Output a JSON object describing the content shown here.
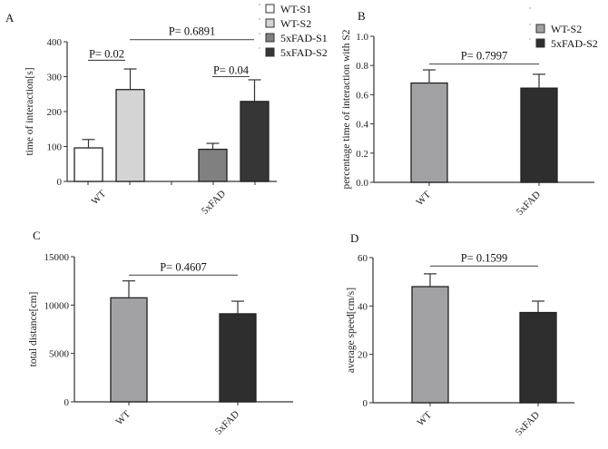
{
  "chart_data": [
    {
      "panel": "A",
      "type": "bar",
      "title": "",
      "xlabel": "",
      "ylabel": "time of interaction[s]",
      "ylim": [
        0,
        400
      ],
      "yticks": [
        0,
        100,
        200,
        300,
        400
      ],
      "categories": [
        "WT",
        "5xFAD"
      ],
      "grid": false,
      "legend_position": "top-right",
      "series": [
        {
          "name": "WT-S1",
          "color": "#ffffff",
          "group": "WT",
          "value": 96,
          "error": 24
        },
        {
          "name": "WT-S2",
          "color": "#d4d4d4",
          "group": "WT",
          "value": 263,
          "error": 59
        },
        {
          "name": "5xFAD-S1",
          "color": "#808080",
          "group": "5xFAD",
          "value": 92,
          "error": 17
        },
        {
          "name": "5xFAD-S2",
          "color": "#363636",
          "group": "5xFAD",
          "value": 229,
          "error": 62
        }
      ],
      "annotations": [
        {
          "text": "P= 0.02",
          "from": "WT-S1",
          "to": "WT-S2",
          "y": 347,
          "underlined": true
        },
        {
          "text": "P= 0.04",
          "from": "5xFAD-S1",
          "to": "5xFAD-S2",
          "y": 300,
          "underlined": true
        },
        {
          "text": "P= 0.6891",
          "from": "WT-S2",
          "to": "5xFAD-S2",
          "y": 406
        }
      ]
    },
    {
      "panel": "B",
      "type": "bar",
      "title": "",
      "xlabel": "",
      "ylabel": "percentage time of interaction with S2",
      "ylim": [
        0,
        1.0
      ],
      "yticks": [
        "0.0",
        "0.2",
        "0.4",
        "0.6",
        "0.8",
        "1.0"
      ],
      "categories": [
        "WT",
        "5xFAD"
      ],
      "grid": false,
      "legend_position": "top-right",
      "series": [
        {
          "name": "WT-S2",
          "color": "#a2a2a4",
          "value": 0.68,
          "error": 0.09
        },
        {
          "name": "5xFAD-S2",
          "color": "#2e2e2e",
          "value": 0.645,
          "error": 0.095
        }
      ],
      "annotations": [
        {
          "text": "P= 0.7997",
          "from": "WT",
          "to": "5xFAD",
          "y": 0.81
        }
      ]
    },
    {
      "panel": "C",
      "type": "bar",
      "title": "",
      "xlabel": "",
      "ylabel": "total distance[cm]",
      "ylim": [
        0,
        15000
      ],
      "yticks": [
        0,
        5000,
        10000,
        15000
      ],
      "categories": [
        "WT",
        "5xFAD"
      ],
      "grid": false,
      "series": [
        {
          "name": "WT",
          "color": "#a2a2a4",
          "value": 10750,
          "error": 1750
        },
        {
          "name": "5xFAD",
          "color": "#2e2e2e",
          "value": 9100,
          "error": 1300
        }
      ],
      "annotations": [
        {
          "text": "P= 0.4607",
          "from": "WT",
          "to": "5xFAD",
          "y": 13100
        }
      ]
    },
    {
      "panel": "D",
      "type": "bar",
      "title": "",
      "xlabel": "",
      "ylabel": "average speed[cm/s]",
      "ylim": [
        0,
        60
      ],
      "yticks": [
        0,
        20,
        40,
        60
      ],
      "categories": [
        "WT",
        "5xFAD"
      ],
      "grid": false,
      "series": [
        {
          "name": "WT",
          "color": "#a2a2a4",
          "value": 48,
          "error": 5.3
        },
        {
          "name": "5xFAD",
          "color": "#2e2e2e",
          "value": 37.3,
          "error": 4.7
        }
      ],
      "annotations": [
        {
          "text": "P= 0.1599",
          "from": "WT",
          "to": "5xFAD",
          "y": 56.5
        }
      ]
    }
  ]
}
